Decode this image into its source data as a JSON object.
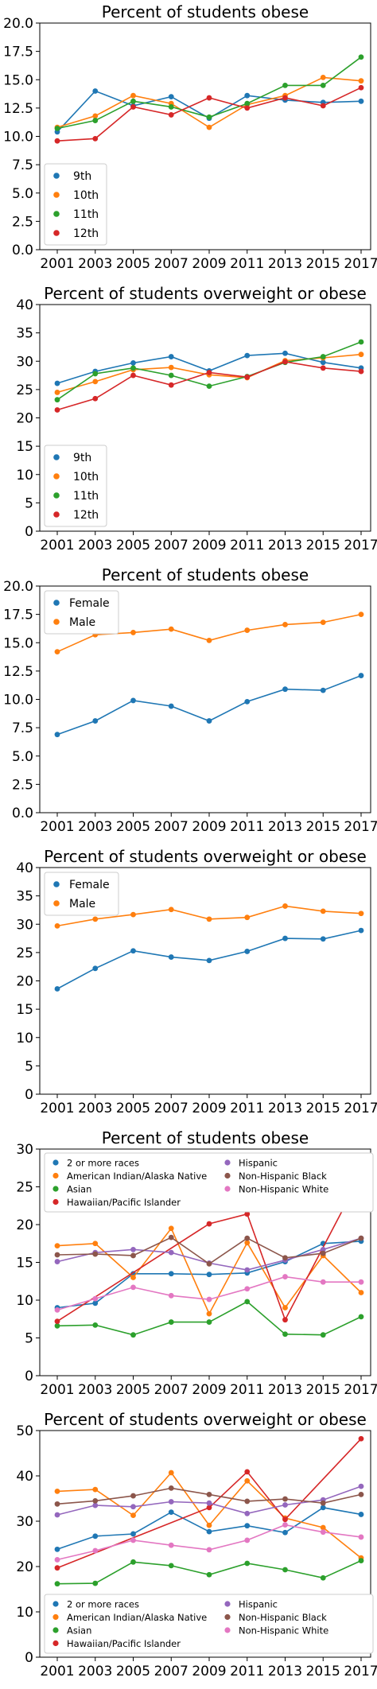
{
  "chart_data": [
    {
      "type": "line",
      "title": "Percent of students obese",
      "xlabel": "",
      "ylabel": "",
      "ylim": [
        0,
        20
      ],
      "yticks": [
        "0.0",
        "2.5",
        "5.0",
        "7.5",
        "10.0",
        "12.5",
        "15.0",
        "17.5",
        "20.0"
      ],
      "ytick_values": [
        0,
        2.5,
        5,
        7.5,
        10,
        12.5,
        15,
        17.5,
        20
      ],
      "x": [
        "2001",
        "2003",
        "2005",
        "2007",
        "2009",
        "2011",
        "2013",
        "2015",
        "2017"
      ],
      "legend_position": "lower-left",
      "series": [
        {
          "name": "9th",
          "color": "#1f77b4",
          "values": [
            10.4,
            14.0,
            12.7,
            13.5,
            11.6,
            13.6,
            13.2,
            13.0,
            13.1
          ]
        },
        {
          "name": "10th",
          "color": "#ff7f0e",
          "values": [
            10.8,
            11.8,
            13.6,
            12.9,
            10.8,
            12.8,
            13.6,
            15.2,
            14.9
          ]
        },
        {
          "name": "11th",
          "color": "#2ca02c",
          "values": [
            10.7,
            11.4,
            13.1,
            12.6,
            11.7,
            12.9,
            14.5,
            14.5,
            17.0
          ]
        },
        {
          "name": "12th",
          "color": "#d62728",
          "values": [
            9.6,
            9.8,
            12.6,
            11.9,
            13.4,
            12.5,
            13.4,
            12.7,
            14.3
          ]
        }
      ]
    },
    {
      "type": "line",
      "title": "Percent of students overweight or obese",
      "xlabel": "",
      "ylabel": "",
      "ylim": [
        0,
        40
      ],
      "yticks": [
        "0",
        "5",
        "10",
        "15",
        "20",
        "25",
        "30",
        "35",
        "40"
      ],
      "ytick_values": [
        0,
        5,
        10,
        15,
        20,
        25,
        30,
        35,
        40
      ],
      "x": [
        "2001",
        "2003",
        "2005",
        "2007",
        "2009",
        "2011",
        "2013",
        "2015",
        "2017"
      ],
      "legend_position": "lower-left",
      "series": [
        {
          "name": "9th",
          "color": "#1f77b4",
          "values": [
            26.1,
            28.2,
            29.7,
            30.8,
            28.3,
            31.0,
            31.4,
            29.8,
            28.8
          ]
        },
        {
          "name": "10th",
          "color": "#ff7f0e",
          "values": [
            24.5,
            26.4,
            28.5,
            28.9,
            27.6,
            27.1,
            30.1,
            30.6,
            31.2
          ]
        },
        {
          "name": "11th",
          "color": "#2ca02c",
          "values": [
            23.2,
            27.8,
            28.8,
            27.5,
            25.6,
            27.3,
            29.8,
            30.8,
            33.4
          ]
        },
        {
          "name": "12th",
          "color": "#d62728",
          "values": [
            21.4,
            23.4,
            27.5,
            25.8,
            28.0,
            27.2,
            29.9,
            28.8,
            28.2
          ]
        }
      ]
    },
    {
      "type": "line",
      "title": "Percent of students obese",
      "xlabel": "",
      "ylabel": "",
      "ylim": [
        0,
        20
      ],
      "yticks": [
        "0.0",
        "2.5",
        "5.0",
        "7.5",
        "10.0",
        "12.5",
        "15.0",
        "17.5",
        "20.0"
      ],
      "ytick_values": [
        0,
        2.5,
        5,
        7.5,
        10,
        12.5,
        15,
        17.5,
        20
      ],
      "x": [
        "2001",
        "2003",
        "2005",
        "2007",
        "2009",
        "2011",
        "2013",
        "2015",
        "2017"
      ],
      "legend_position": "upper-left",
      "series": [
        {
          "name": "Female",
          "color": "#1f77b4",
          "values": [
            6.9,
            8.1,
            9.9,
            9.4,
            8.1,
            9.8,
            10.9,
            10.8,
            12.1
          ]
        },
        {
          "name": "Male",
          "color": "#ff7f0e",
          "values": [
            14.2,
            15.7,
            15.9,
            16.2,
            15.2,
            16.1,
            16.6,
            16.8,
            17.5
          ]
        }
      ]
    },
    {
      "type": "line",
      "title": "Percent of students overweight or obese",
      "xlabel": "",
      "ylabel": "",
      "ylim": [
        0,
        40
      ],
      "yticks": [
        "0",
        "5",
        "10",
        "15",
        "20",
        "25",
        "30",
        "35",
        "40"
      ],
      "ytick_values": [
        0,
        5,
        10,
        15,
        20,
        25,
        30,
        35,
        40
      ],
      "x": [
        "2001",
        "2003",
        "2005",
        "2007",
        "2009",
        "2011",
        "2013",
        "2015",
        "2017"
      ],
      "legend_position": "upper-left",
      "series": [
        {
          "name": "Female",
          "color": "#1f77b4",
          "values": [
            18.6,
            22.2,
            25.3,
            24.2,
            23.6,
            25.2,
            27.5,
            27.4,
            28.9
          ]
        },
        {
          "name": "Male",
          "color": "#ff7f0e",
          "values": [
            29.7,
            30.9,
            31.7,
            32.6,
            30.9,
            31.2,
            33.2,
            32.3,
            31.9
          ]
        }
      ]
    },
    {
      "type": "line",
      "title": "Percent of students obese",
      "xlabel": "",
      "ylabel": "",
      "ylim": [
        0,
        30
      ],
      "yticks": [
        "0",
        "5",
        "10",
        "15",
        "20",
        "25",
        "30"
      ],
      "ytick_values": [
        0,
        5,
        10,
        15,
        20,
        25,
        30
      ],
      "x": [
        "2001",
        "2003",
        "2005",
        "2007",
        "2009",
        "2011",
        "2013",
        "2015",
        "2017"
      ],
      "legend_position": "upper-left",
      "series": [
        {
          "name": "2 or more races",
          "color": "#1f77b4",
          "values": [
            9.0,
            9.6,
            13.5,
            13.5,
            13.4,
            13.6,
            15.1,
            17.5,
            17.8
          ]
        },
        {
          "name": "American Indian/Alaska Native",
          "color": "#ff7f0e",
          "values": [
            17.2,
            17.5,
            13.0,
            19.5,
            8.2,
            17.6,
            9.0,
            15.9,
            11.0
          ]
        },
        {
          "name": "Asian",
          "color": "#2ca02c",
          "values": [
            6.6,
            6.7,
            5.4,
            7.1,
            7.1,
            9.8,
            5.5,
            5.4,
            7.8
          ]
        },
        {
          "name": "Hawaiian/Pacific Islander",
          "color": "#d62728",
          "values": [
            7.2,
            null,
            null,
            null,
            20.1,
            21.4,
            7.4,
            null,
            26.6
          ]
        },
        {
          "name": "Hispanic",
          "color": "#9467bd",
          "values": [
            15.1,
            16.3,
            16.7,
            16.3,
            14.9,
            14.0,
            15.3,
            16.7,
            18.2
          ]
        },
        {
          "name": "Non-Hispanic Black",
          "color": "#8c564b",
          "values": [
            16.0,
            16.1,
            15.9,
            18.3,
            14.8,
            18.2,
            15.6,
            16.2,
            18.2
          ]
        },
        {
          "name": "Non-Hispanic White",
          "color": "#e377c2",
          "values": [
            8.7,
            10.2,
            11.7,
            10.6,
            10.1,
            11.5,
            13.1,
            12.4,
            12.4
          ]
        }
      ]
    },
    {
      "type": "line",
      "title": "Percent of students overweight or obese",
      "xlabel": "",
      "ylabel": "",
      "ylim": [
        0,
        50
      ],
      "yticks": [
        "0",
        "10",
        "20",
        "30",
        "40",
        "50"
      ],
      "ytick_values": [
        0,
        10,
        20,
        30,
        40,
        50
      ],
      "x": [
        "2001",
        "2003",
        "2005",
        "2007",
        "2009",
        "2011",
        "2013",
        "2015",
        "2017"
      ],
      "legend_position": "lower-left",
      "series": [
        {
          "name": "2 or more races",
          "color": "#1f77b4",
          "values": [
            23.8,
            26.7,
            27.2,
            32.0,
            27.7,
            29.0,
            27.5,
            33.0,
            31.5
          ]
        },
        {
          "name": "American Indian/Alaska Native",
          "color": "#ff7f0e",
          "values": [
            36.6,
            37.0,
            31.3,
            40.7,
            29.1,
            38.9,
            30.7,
            28.6,
            21.9
          ]
        },
        {
          "name": "Asian",
          "color": "#2ca02c",
          "values": [
            16.2,
            16.3,
            21.0,
            20.2,
            18.2,
            20.7,
            19.3,
            17.5,
            21.3
          ]
        },
        {
          "name": "Hawaiian/Pacific Islander",
          "color": "#d62728",
          "values": [
            19.7,
            null,
            null,
            null,
            33.0,
            40.9,
            30.4,
            null,
            48.2
          ]
        },
        {
          "name": "Hispanic",
          "color": "#9467bd",
          "values": [
            31.4,
            33.5,
            33.2,
            34.3,
            34.0,
            31.7,
            33.6,
            34.7,
            37.7
          ]
        },
        {
          "name": "Non-Hispanic Black",
          "color": "#8c564b",
          "values": [
            33.8,
            34.5,
            35.6,
            37.3,
            35.9,
            34.4,
            34.9,
            34.0,
            35.9
          ]
        },
        {
          "name": "Non-Hispanic White",
          "color": "#e377c2",
          "values": [
            21.5,
            23.5,
            25.8,
            24.7,
            23.7,
            25.8,
            29.2,
            27.6,
            26.5
          ]
        }
      ]
    }
  ]
}
